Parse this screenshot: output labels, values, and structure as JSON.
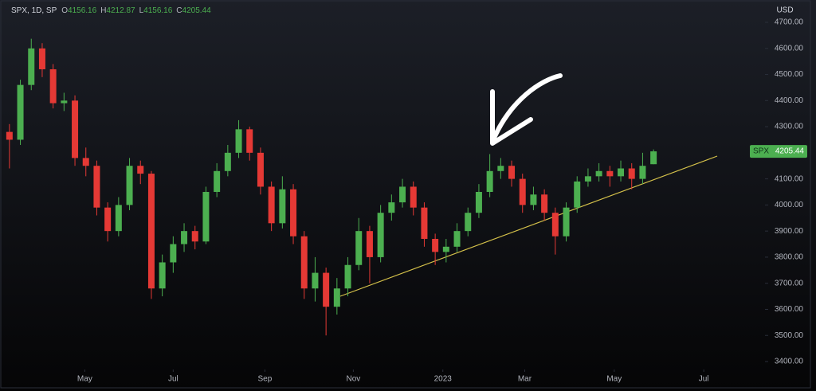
{
  "chart_data": {
    "type": "candlestick",
    "symbol": "SPX, 1D, SP",
    "ohlc_labels": [
      "O",
      "H",
      "L",
      "C"
    ],
    "currency": "USD",
    "price_tag": "SPX",
    "up_color": "#4caf50",
    "down_color": "#e53935",
    "open": [
      4280,
      4250,
      4460,
      4600,
      4520,
      4390,
      4400,
      4180,
      4150,
      3990,
      3900,
      4000,
      4150,
      4120,
      3680,
      3780,
      3850,
      3900,
      3860,
      4050,
      4130,
      4200,
      4290,
      4200,
      4070,
      3930,
      4060,
      3880,
      3680,
      3740,
      3610,
      3680,
      3770,
      3900,
      3800,
      3970,
      4010,
      4070,
      3990,
      3870,
      3820,
      3840,
      3900,
      3970,
      4050,
      4130,
      4150,
      4100,
      4000,
      4040,
      3970,
      3880,
      3990,
      4090,
      4110,
      4130,
      4110,
      4140,
      4100,
      4156.16
    ],
    "high": [
      4310,
      4480,
      4637,
      4620,
      4540,
      4430,
      4420,
      4220,
      4170,
      4010,
      4030,
      4180,
      4170,
      4130,
      3810,
      3880,
      3930,
      3920,
      4070,
      4160,
      4230,
      4325,
      4300,
      4220,
      4090,
      4110,
      4080,
      3900,
      3800,
      3760,
      3720,
      3800,
      3950,
      3920,
      4000,
      4040,
      4100,
      4090,
      4010,
      3890,
      3870,
      3930,
      3990,
      4080,
      4195,
      4180,
      4170,
      4120,
      4070,
      4060,
      3990,
      4010,
      4110,
      4140,
      4160,
      4150,
      4170,
      4160,
      4200,
      4212.87
    ],
    "low": [
      4140,
      4230,
      4440,
      4490,
      4370,
      4360,
      4150,
      4110,
      3960,
      3860,
      3880,
      3980,
      4080,
      3640,
      3650,
      3740,
      3820,
      3830,
      3850,
      4030,
      4110,
      4180,
      4170,
      4040,
      3900,
      3910,
      3850,
      3640,
      3630,
      3500,
      3580,
      3650,
      3750,
      3700,
      3780,
      3940,
      3990,
      3960,
      3840,
      3770,
      3780,
      3820,
      3880,
      3950,
      4030,
      4100,
      4070,
      3970,
      3980,
      3940,
      3810,
      3860,
      3970,
      4070,
      4090,
      4070,
      4090,
      4060,
      4080,
      4156.16
    ],
    "close": [
      4250,
      4460,
      4600,
      4520,
      4390,
      4400,
      4180,
      4150,
      3990,
      3900,
      4000,
      4150,
      4120,
      3680,
      3780,
      3850,
      3900,
      3860,
      4050,
      4130,
      4200,
      4290,
      4200,
      4070,
      3930,
      4060,
      3880,
      3680,
      3740,
      3610,
      3680,
      3770,
      3900,
      3800,
      3970,
      4010,
      4070,
      3990,
      3870,
      3820,
      3840,
      3900,
      3970,
      4050,
      4130,
      4150,
      4100,
      4000,
      4040,
      3970,
      3880,
      3990,
      4090,
      4110,
      4130,
      4110,
      4140,
      4100,
      4150,
      4205.44
    ],
    "xlim": [
      -0.5,
      67.75
    ],
    "xticks": [
      {
        "value": 6.9,
        "label": "May"
      },
      {
        "value": 15.0,
        "label": "Jul"
      },
      {
        "value": 23.4,
        "label": "Sep"
      },
      {
        "value": 31.5,
        "label": "Nov"
      },
      {
        "value": 39.7,
        "label": "2023"
      },
      {
        "value": 47.2,
        "label": "Mar"
      },
      {
        "value": 55.4,
        "label": "May"
      },
      {
        "value": 63.6,
        "label": "Jul"
      }
    ],
    "ylim": [
      3400,
      4700
    ],
    "yticks": [
      {
        "value": 3400,
        "label": "3400.00"
      },
      {
        "value": 3500,
        "label": "3500.00"
      },
      {
        "value": 3600,
        "label": "3600.00"
      },
      {
        "value": 3700,
        "label": "3700.00"
      },
      {
        "value": 3800,
        "label": "3800.00"
      },
      {
        "value": 3900,
        "label": "3900.00"
      },
      {
        "value": 4000,
        "label": "4000.00"
      },
      {
        "value": 4100,
        "label": "4100.00"
      },
      {
        "value": 4200,
        "label": "4200.00"
      },
      {
        "value": 4300,
        "label": "4300.00"
      },
      {
        "value": 4400,
        "label": "4400.00"
      },
      {
        "value": 4500,
        "label": "4500.00"
      },
      {
        "value": 4600,
        "label": "4600.00"
      },
      {
        "value": 4700,
        "label": "4700.00"
      }
    ]
  }
}
